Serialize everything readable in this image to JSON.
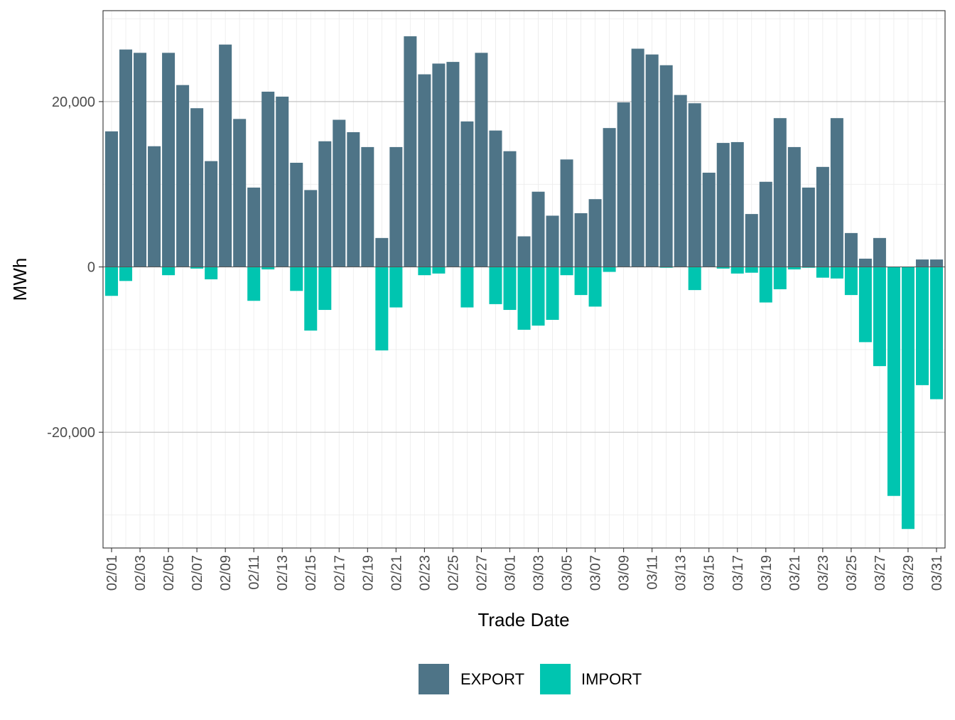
{
  "chart_data": {
    "type": "bar",
    "stacked": "diverging",
    "xlabel": "Trade Date",
    "ylabel": "MWh",
    "ylim": [
      -34000,
      31000
    ],
    "y_ticks": [
      -20000,
      0,
      20000
    ],
    "y_tick_labels": [
      "-20,000",
      "0",
      "20,000"
    ],
    "grid": true,
    "legend_position": "bottom",
    "categories": [
      "02/01",
      "02/02",
      "02/03",
      "02/04",
      "02/05",
      "02/06",
      "02/07",
      "02/08",
      "02/09",
      "02/10",
      "02/11",
      "02/12",
      "02/13",
      "02/14",
      "02/15",
      "02/16",
      "02/17",
      "02/18",
      "02/19",
      "02/20",
      "02/21",
      "02/22",
      "02/23",
      "02/24",
      "02/25",
      "02/26",
      "02/27",
      "02/28",
      "03/01",
      "03/02",
      "03/03",
      "03/04",
      "03/05",
      "03/06",
      "03/07",
      "03/08",
      "03/09",
      "03/10",
      "03/11",
      "03/12",
      "03/13",
      "03/14",
      "03/15",
      "03/16",
      "03/17",
      "03/18",
      "03/19",
      "03/20",
      "03/21",
      "03/22",
      "03/23",
      "03/24",
      "03/25",
      "03/26",
      "03/27",
      "03/28",
      "03/29",
      "03/30",
      "03/31"
    ],
    "x_tick_labels": [
      "02/01",
      "02/03",
      "02/05",
      "02/07",
      "02/09",
      "02/11",
      "02/13",
      "02/15",
      "02/17",
      "02/19",
      "02/21",
      "02/23",
      "02/25",
      "02/27",
      "03/01",
      "03/03",
      "03/05",
      "03/07",
      "03/09",
      "03/11",
      "03/13",
      "03/15",
      "03/17",
      "03/19",
      "03/21",
      "03/23",
      "03/25",
      "03/27",
      "03/29",
      "03/31"
    ],
    "series": [
      {
        "name": "EXPORT",
        "color": "#4e7487",
        "values": [
          16400,
          26300,
          25900,
          14600,
          25900,
          22000,
          19200,
          12800,
          26900,
          17900,
          9600,
          21200,
          20600,
          12600,
          9300,
          15200,
          17800,
          16300,
          14500,
          3500,
          14500,
          27900,
          23300,
          24600,
          24800,
          17600,
          25900,
          16500,
          14000,
          3700,
          9100,
          6200,
          13000,
          6500,
          8200,
          16800,
          19900,
          26400,
          25700,
          24400,
          20800,
          19800,
          11400,
          15000,
          15100,
          6400,
          10300,
          18000,
          14500,
          9600,
          12100,
          18000,
          4100,
          1000,
          3500,
          0,
          0,
          900,
          900
        ]
      },
      {
        "name": "IMPORT",
        "color": "#00c5b0",
        "values": [
          -3500,
          -1700,
          0,
          0,
          -1000,
          0,
          -200,
          -1500,
          0,
          0,
          -4100,
          -300,
          0,
          -2900,
          -7700,
          -5200,
          0,
          0,
          0,
          -10100,
          -4900,
          0,
          -1000,
          -800,
          0,
          -4900,
          0,
          -4500,
          -5200,
          -7600,
          -7100,
          -6400,
          -1000,
          -3400,
          -4800,
          -600,
          0,
          0,
          0,
          -100,
          0,
          -2800,
          0,
          -200,
          -800,
          -700,
          -4300,
          -2700,
          -300,
          -100,
          -1300,
          -1400,
          -3400,
          -9100,
          -12000,
          -27700,
          -31700,
          -14300,
          -16000
        ]
      }
    ]
  }
}
